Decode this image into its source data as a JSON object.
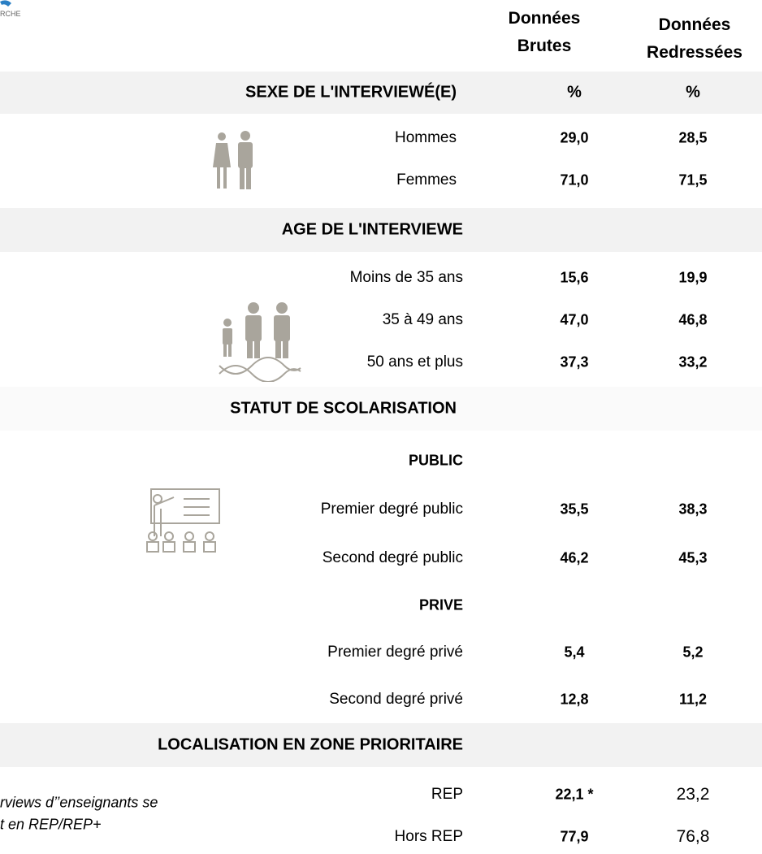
{
  "header": {
    "logo_text": "RCHE",
    "columns": [
      "Données Brutes",
      "Données Redressées"
    ]
  },
  "sections": [
    {
      "title": "SEXE DE L'INTERVIEWÉ(E)",
      "units": [
        "%",
        "%"
      ],
      "rows": [
        {
          "label": "Hommes",
          "values": [
            "29,0",
            "28,5"
          ]
        },
        {
          "label": "Femmes",
          "values": [
            "71,0",
            "71,5"
          ]
        }
      ]
    },
    {
      "title": "AGE DE L'INTERVIEWE",
      "rows": [
        {
          "label": "Moins de 35 ans",
          "values": [
            "15,6",
            "19,9"
          ]
        },
        {
          "label": "35 à 49 ans",
          "values": [
            "47,0",
            "46,8"
          ]
        },
        {
          "label": "50 ans et plus",
          "values": [
            "37,3",
            "33,2"
          ]
        }
      ]
    },
    {
      "title": "STATUT DE SCOLARISATION",
      "groups": [
        {
          "title": "PUBLIC",
          "rows": [
            {
              "label": "Premier degré public",
              "values": [
                "35,5",
                "38,3"
              ]
            },
            {
              "label": "Second degré public",
              "values": [
                "46,2",
                "45,3"
              ]
            }
          ]
        },
        {
          "title": "PRIVE",
          "rows": [
            {
              "label": "Premier degré privé",
              "values": [
                "5,4",
                "5,2"
              ]
            },
            {
              "label": "Second degré privé",
              "values": [
                "12,8",
                "11,2"
              ]
            }
          ]
        }
      ]
    },
    {
      "title": "LOCALISATION EN ZONE PRIORITAIRE",
      "rows": [
        {
          "label": "REP",
          "values": [
            "22,1 *",
            "23,2"
          ]
        },
        {
          "label": "Hors REP",
          "values": [
            "77,9",
            "76,8"
          ]
        }
      ]
    }
  ],
  "note": [
    "rviews d’’enseignants se",
    "t en REP/REP+"
  ]
}
